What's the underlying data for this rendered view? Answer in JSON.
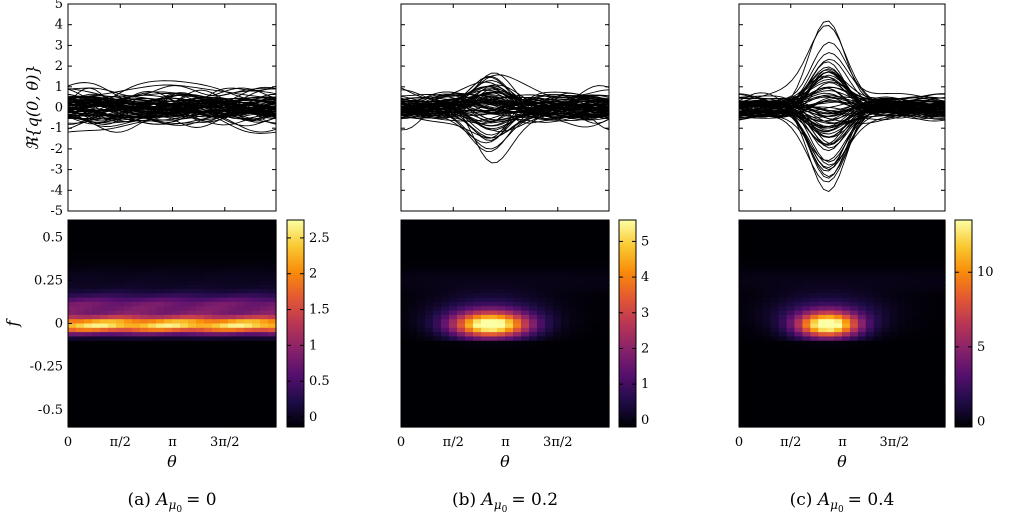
{
  "chart_data": [
    {
      "id": "a",
      "caption_prefix": "(a)",
      "caption_var": "A",
      "caption_sub": "μ",
      "caption_subsub": "0",
      "caption_val": "= 0",
      "top": {
        "type": "line",
        "ylabel": "ℜ{q(0, θ)}",
        "ylim": [
          -5,
          5
        ],
        "yticks": [
          "-5",
          "-4",
          "-3",
          "-2",
          "-1",
          "0",
          "1",
          "2",
          "3",
          "4",
          "5"
        ],
        "envelope": 1.0,
        "n_curves": 80,
        "peak_center": 3.14,
        "peak_gain": 0.35
      },
      "bottom": {
        "type": "heatmap",
        "xlabel": "θ",
        "ylabel": "f",
        "xticks": [
          "0",
          "π/2",
          "π",
          "3π/2"
        ],
        "yticks": [
          "0.5",
          "0.25",
          "0",
          "-0.25",
          "-0.5"
        ],
        "ylim": [
          -0.6,
          0.6
        ],
        "colorbar_ticks": [
          "0",
          "0.5",
          "1",
          "1.5",
          "2",
          "2.5"
        ],
        "cmax": 2.75,
        "peak_theta": null
      }
    },
    {
      "id": "b",
      "caption_prefix": "(b)",
      "caption_var": "A",
      "caption_sub": "μ",
      "caption_subsub": "0",
      "caption_val": "= 0.2",
      "top": {
        "type": "line",
        "ylabel": "",
        "ylim": [
          -5,
          5
        ],
        "yticks": [],
        "envelope": 0.8,
        "n_curves": 80,
        "peak_center": 2.7,
        "peak_gain": 1.6
      },
      "bottom": {
        "type": "heatmap",
        "xlabel": "θ",
        "ylabel": "",
        "xticks": [
          "0",
          "π/2",
          "π",
          "3π/2"
        ],
        "yticks": [],
        "ylim": [
          -0.6,
          0.6
        ],
        "colorbar_ticks": [
          "0",
          "1",
          "2",
          "3",
          "4",
          "5"
        ],
        "cmax": 5.6,
        "peak_theta": 2.7
      }
    },
    {
      "id": "c",
      "caption_prefix": "(c)",
      "caption_var": "A",
      "caption_sub": "μ",
      "caption_subsub": "0",
      "caption_val": "= 0.4",
      "top": {
        "type": "line",
        "ylabel": "",
        "ylim": [
          -5,
          5
        ],
        "yticks": [],
        "envelope": 0.6,
        "n_curves": 80,
        "peak_center": 2.7,
        "peak_gain": 3.4
      },
      "bottom": {
        "type": "heatmap",
        "xlabel": "θ",
        "ylabel": "",
        "xticks": [
          "0",
          "π/2",
          "π",
          "3π/2"
        ],
        "yticks": [],
        "ylim": [
          -0.6,
          0.6
        ],
        "colorbar_ticks": [
          "0",
          "5",
          "10"
        ],
        "cmax": 13.5,
        "peak_theta": 2.7
      }
    }
  ]
}
